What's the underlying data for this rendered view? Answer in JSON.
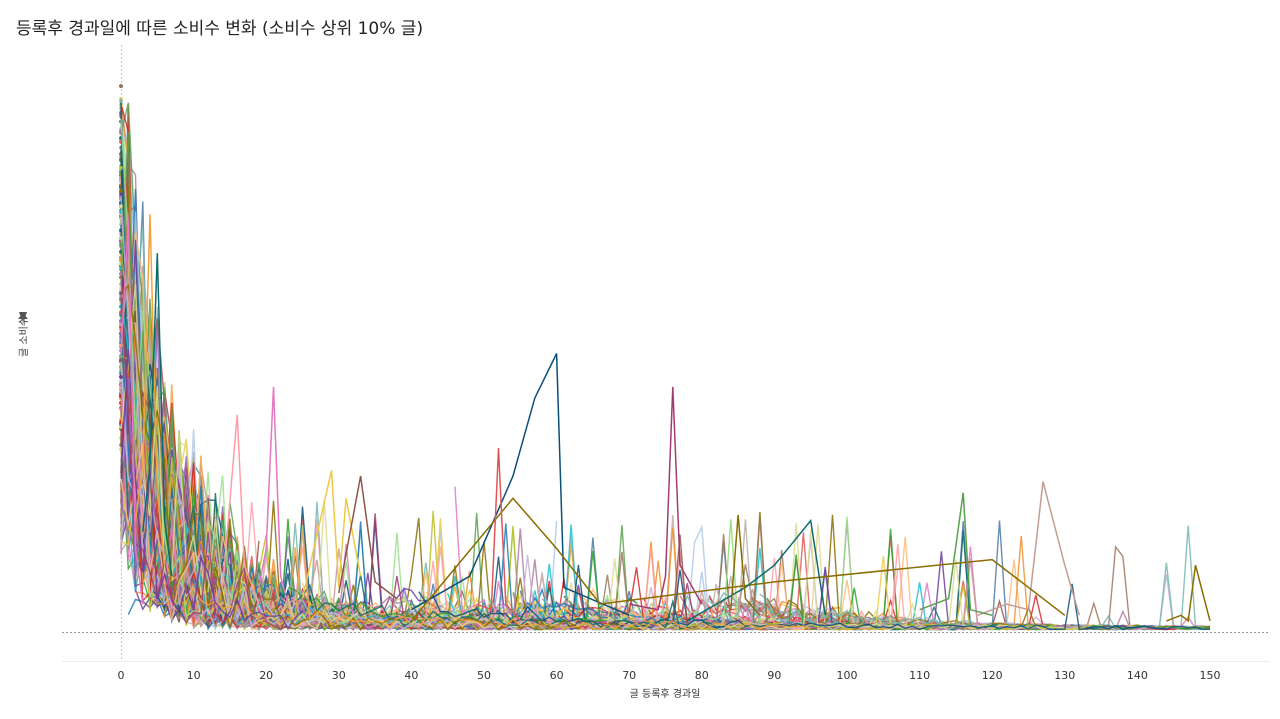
{
  "title": "등록후 경과일에 따른 소비수 변화 (소비수 상위 10% 글)",
  "chart_data": {
    "type": "line",
    "title": "등록후 경과일에 따른 소비수 변화 (소비수 상위 10% 글)",
    "xlabel": "글 등록후 경과일",
    "ylabel": "글 소비수",
    "ylabel_marker": "pin-icon",
    "xlim": [
      0,
      150
    ],
    "xticks": [
      0,
      10,
      20,
      30,
      40,
      50,
      60,
      70,
      80,
      90,
      100,
      110,
      120,
      130,
      140,
      150
    ],
    "y_tick_labels_shown": false,
    "grid": false,
    "legend": "none",
    "num_series_estimate": 300,
    "palette": [
      "#4e79a7",
      "#f28e2b",
      "#e15759",
      "#76b7b2",
      "#59a14f",
      "#edc948",
      "#b07aa1",
      "#ff9da7",
      "#9c755f",
      "#bab0ac",
      "#1f77b4",
      "#2ca02c",
      "#d62728",
      "#9467bd",
      "#8c564b",
      "#e377c2",
      "#17becf",
      "#bcbd22",
      "#aec7e8",
      "#ffbb78",
      "#98df8a",
      "#c5b0d5",
      "#c49c94",
      "#dbdb8d",
      "#0b4f7c",
      "#0f6b6b",
      "#8a6d00",
      "#a23b72",
      "#f1a340",
      "#6a3d9a"
    ],
    "highlight_series": [
      {
        "color": "#0b4f7c",
        "points": [
          [
            40,
            0.04
          ],
          [
            48,
            0.1
          ],
          [
            54,
            0.28
          ],
          [
            57,
            0.42
          ],
          [
            60,
            0.5
          ],
          [
            61,
            0.08
          ],
          [
            70,
            0.03
          ]
        ]
      },
      {
        "color": "#a23b72",
        "points": [
          [
            70,
            0.05
          ],
          [
            74,
            0.04
          ],
          [
            75,
            0.1
          ],
          [
            76,
            0.44
          ],
          [
            77,
            0.12
          ],
          [
            80,
            0.05
          ]
        ]
      },
      {
        "color": "#c49c94",
        "points": [
          [
            118,
            0.03
          ],
          [
            122,
            0.05
          ],
          [
            125,
            0.04
          ],
          [
            127,
            0.27
          ],
          [
            130,
            0.12
          ],
          [
            132,
            0.03
          ]
        ]
      },
      {
        "color": "#8a6d00",
        "points": [
          [
            40,
            0.02
          ],
          [
            54,
            0.24
          ],
          [
            60,
            0.15
          ],
          [
            66,
            0.05
          ],
          [
            90,
            0.09
          ],
          [
            120,
            0.13
          ],
          [
            130,
            0.03
          ]
        ]
      },
      {
        "color": "#0f6b6b",
        "points": [
          [
            78,
            0.02
          ],
          [
            86,
            0.08
          ],
          [
            90,
            0.12
          ],
          [
            95,
            0.2
          ],
          [
            97,
            0.03
          ]
        ]
      },
      {
        "color": "#59a14f",
        "points": [
          [
            110,
            0.04
          ],
          [
            114,
            0.06
          ],
          [
            116,
            0.25
          ],
          [
            117,
            0.04
          ],
          [
            120,
            0.03
          ]
        ]
      },
      {
        "color": "#8a6d00",
        "points": [
          [
            144,
            0.02
          ],
          [
            146,
            0.03
          ],
          [
            147,
            0.02
          ],
          [
            148,
            0.12
          ],
          [
            150,
            0.02
          ]
        ]
      },
      {
        "color": "#e15759",
        "points": [
          [
            49,
            0.05
          ],
          [
            51,
            0.04
          ],
          [
            52,
            0.33
          ],
          [
            53,
            0.05
          ],
          [
            55,
            0.02
          ]
        ]
      },
      {
        "color": "#f1a340",
        "points": [
          [
            2,
            0.2
          ],
          [
            3,
            0.3
          ],
          [
            4,
            0.75
          ],
          [
            5,
            0.25
          ],
          [
            6,
            0.12
          ]
        ]
      },
      {
        "color": "#0f6b6b",
        "points": [
          [
            3,
            0.18
          ],
          [
            4,
            0.3
          ],
          [
            5,
            0.68
          ],
          [
            6,
            0.2
          ],
          [
            7,
            0.1
          ]
        ]
      },
      {
        "color": "#e377c2",
        "points": [
          [
            0,
            0.5
          ],
          [
            1,
            0.74
          ],
          [
            2,
            0.15
          ],
          [
            3,
            0.05
          ]
        ]
      },
      {
        "color": "#e377c2",
        "points": [
          [
            19,
            0.08
          ],
          [
            20,
            0.15
          ],
          [
            21,
            0.44
          ],
          [
            22,
            0.1
          ],
          [
            23,
            0.05
          ]
        ]
      },
      {
        "color": "#ff9da7",
        "points": [
          [
            14,
            0.08
          ],
          [
            16,
            0.39
          ],
          [
            17,
            0.12
          ],
          [
            19,
            0.05
          ]
        ]
      },
      {
        "color": "#8a6d00",
        "points": [
          [
            84,
            0.04
          ],
          [
            85,
            0.21
          ],
          [
            86,
            0.06
          ],
          [
            88,
            0.03
          ]
        ]
      },
      {
        "color": "#edc948",
        "points": [
          [
            25,
            0.06
          ],
          [
            29,
            0.29
          ],
          [
            30,
            0.08
          ],
          [
            31,
            0.24
          ],
          [
            33,
            0.1
          ]
        ]
      },
      {
        "color": "#8c564b",
        "points": [
          [
            30,
            0.07
          ],
          [
            33,
            0.28
          ],
          [
            35,
            0.09
          ],
          [
            38,
            0.06
          ]
        ]
      }
    ]
  }
}
